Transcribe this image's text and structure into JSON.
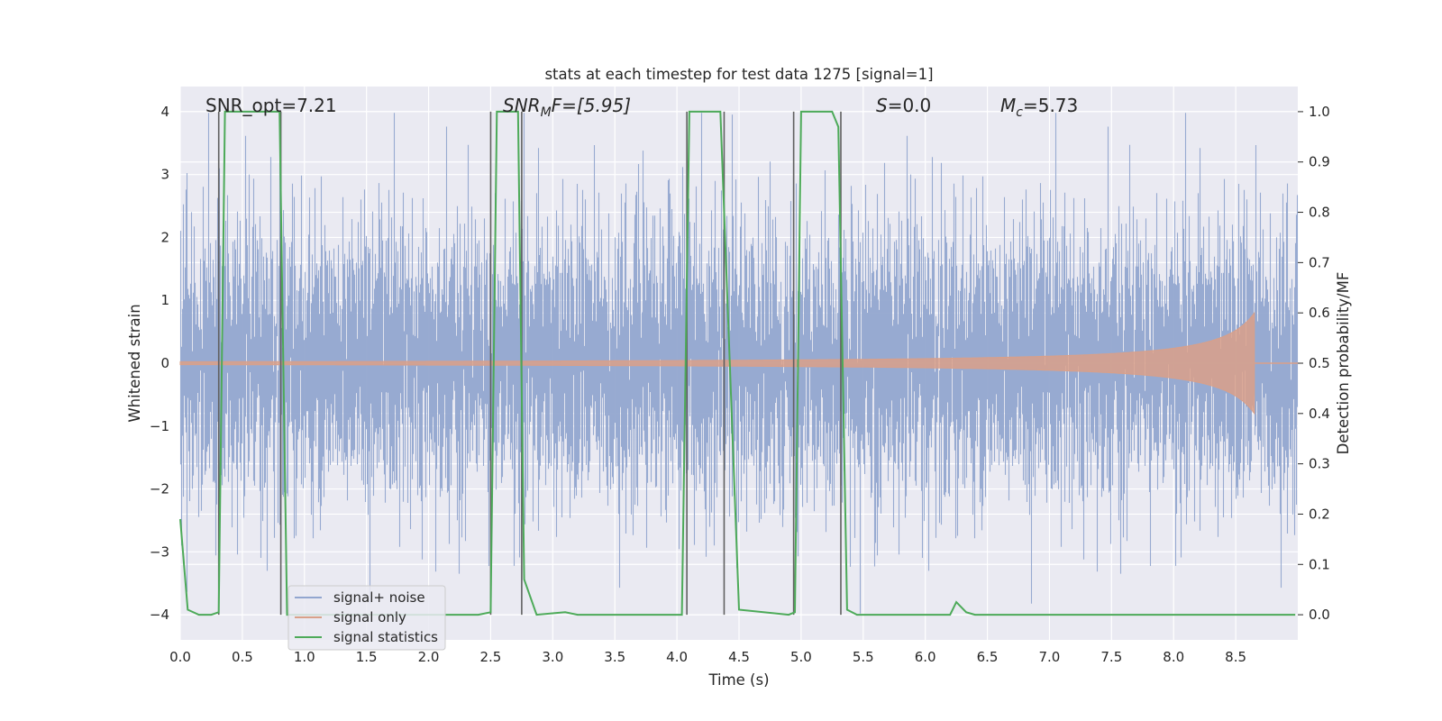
{
  "chart_data": {
    "type": "line",
    "title": "stats at each timestep for test data 1275 [signal=1]",
    "xlabel": "Time (s)",
    "ylabel": "Whitened strain",
    "ylabel_right": "Detection probability/MF",
    "xlim": [
      0.0,
      9.0
    ],
    "ylim": [
      -4.4,
      4.4
    ],
    "ylim_right": [
      -0.05,
      1.05
    ],
    "x_ticks": [
      "0.0",
      "0.5",
      "1.0",
      "1.5",
      "2.0",
      "2.5",
      "3.0",
      "3.5",
      "4.0",
      "4.5",
      "5.0",
      "5.5",
      "6.0",
      "6.5",
      "7.0",
      "7.5",
      "8.0",
      "8.5"
    ],
    "y_ticks": [
      "4",
      "3",
      "2",
      "1",
      "0",
      "−1",
      "−2",
      "−3",
      "−4"
    ],
    "y_ticks_right": [
      "1.0",
      "0.9",
      "0.8",
      "0.7",
      "0.6",
      "0.5",
      "0.4",
      "0.3",
      "0.2",
      "0.1",
      "0.0"
    ],
    "grid": true,
    "legend_placement": "lower-left",
    "annotations": {
      "snr_opt": "SNR_opt=7.21",
      "snr_mf_base": "SNR",
      "snr_mf_sub": "M",
      "snr_mf_rest": "F=[5.95]",
      "s_base": "S",
      "s_rest": "=0.0",
      "mc_base": "M",
      "mc_sub": "c",
      "mc_rest": "=5.73"
    },
    "series": [
      {
        "name": "signal+ noise",
        "color": "#92a6cf",
        "description_level": "whitened noise, |x| up to ~4"
      },
      {
        "name": "signal only",
        "color": "#d9a089",
        "chirp_end_time": 8.65,
        "max_amplitude": 0.8
      },
      {
        "name": "signal statistics",
        "color": "#4daa59",
        "x": [
          0.0,
          0.06,
          0.15,
          0.25,
          0.31,
          0.36,
          0.8,
          0.86,
          1.0,
          2.4,
          2.5,
          2.55,
          2.72,
          2.77,
          2.87,
          3.1,
          3.2,
          4.04,
          4.1,
          4.35,
          4.5,
          4.9,
          4.95,
          5.0,
          5.25,
          5.3,
          5.37,
          5.45,
          6.2,
          6.25,
          6.33,
          6.4,
          8.98
        ],
        "y": [
          0.19,
          0.01,
          0.0,
          0.0,
          0.005,
          1.0,
          1.0,
          0.0,
          0.0,
          0.0,
          0.005,
          1.0,
          1.0,
          0.07,
          0.0,
          0.005,
          0.0,
          0.0,
          1.0,
          1.0,
          0.01,
          0.0,
          0.005,
          1.0,
          1.0,
          0.97,
          0.01,
          0.0,
          0.0,
          0.025,
          0.005,
          0.0,
          0.0
        ]
      },
      {
        "name": "",
        "color": "#606060",
        "type": "vertical-markers",
        "x": [
          0.31,
          0.81,
          2.5,
          2.75,
          4.08,
          4.38,
          4.94,
          5.32
        ]
      }
    ]
  }
}
